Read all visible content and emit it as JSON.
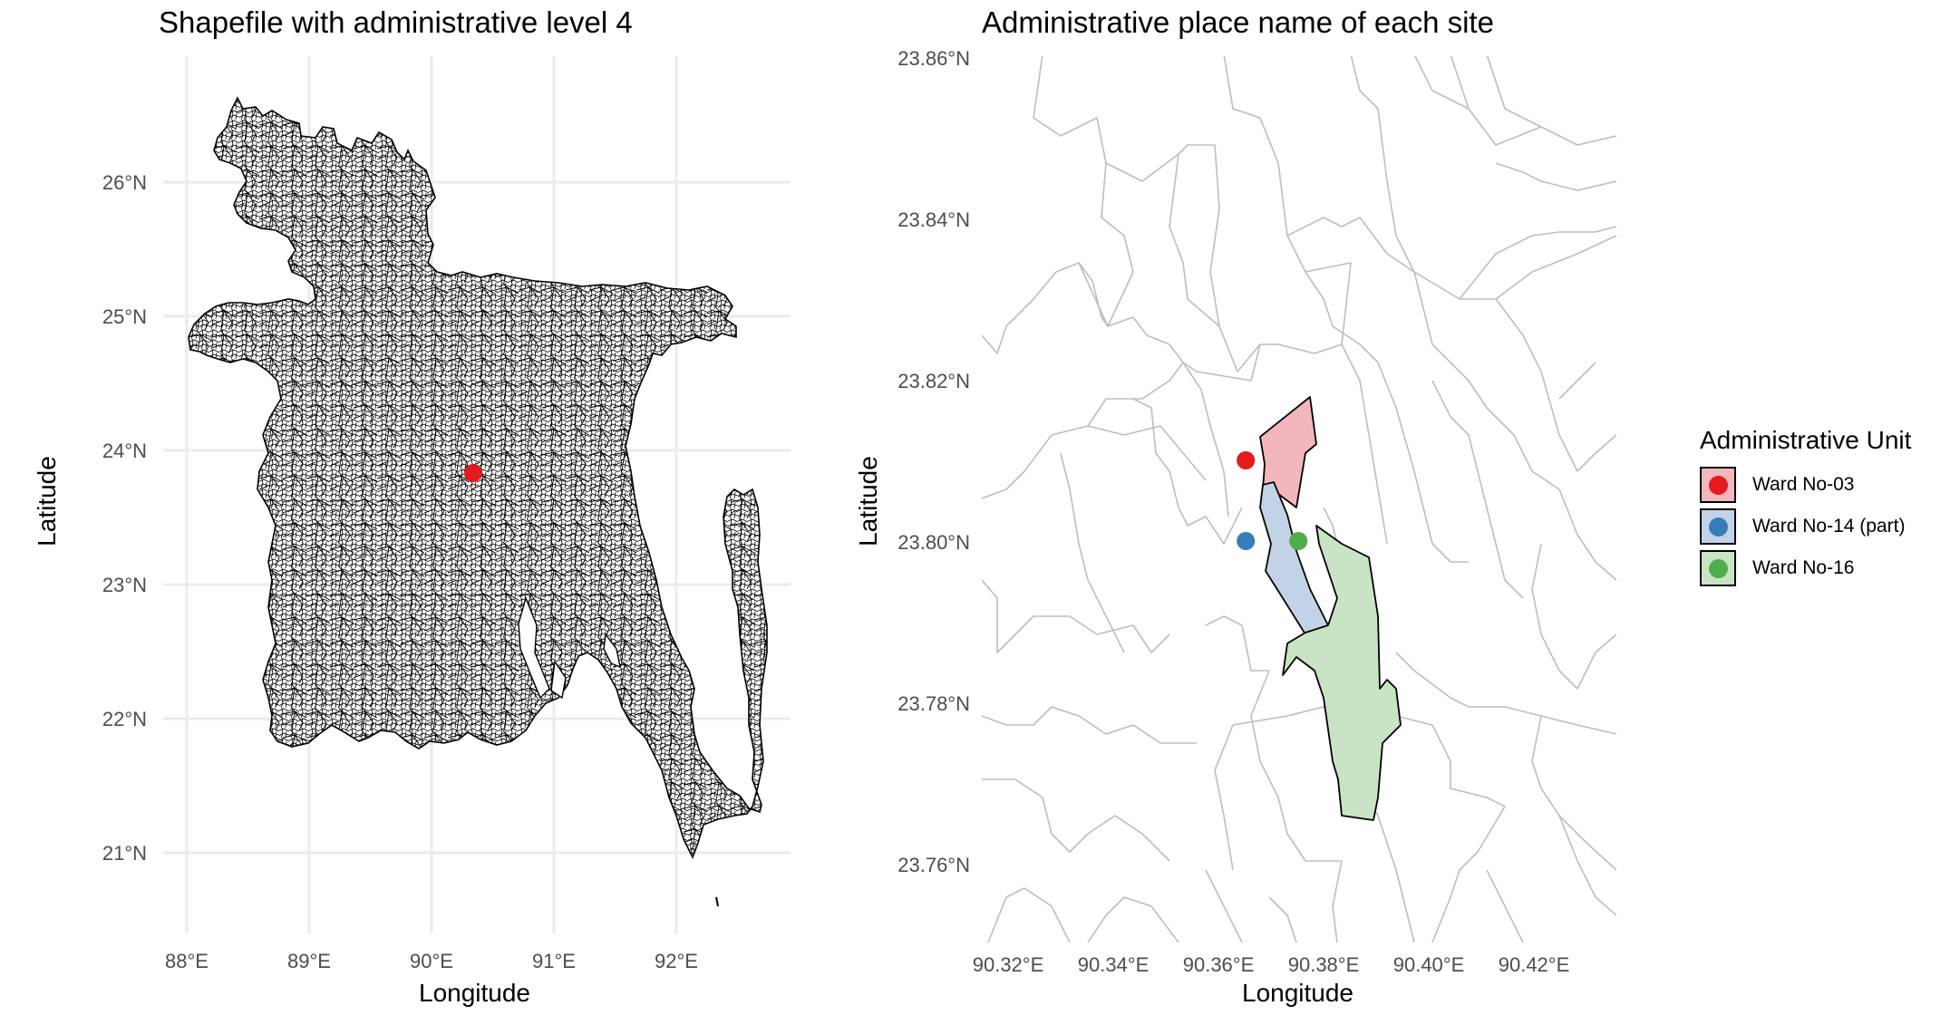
{
  "chart_data": [
    {
      "type": "map",
      "title": "Shapefile with administrative level 4",
      "xlabel": "Longitude",
      "ylabel": "Latitude",
      "x_ticks": [
        "88°E",
        "89°E",
        "90°E",
        "91°E",
        "92°E"
      ],
      "x_tick_values": [
        88,
        89,
        90,
        91,
        92
      ],
      "y_ticks": [
        "21°N",
        "22°N",
        "23°N",
        "24°N",
        "25°N",
        "26°N"
      ],
      "y_tick_values": [
        21,
        22,
        23,
        24,
        25,
        26
      ],
      "xlim": [
        87.9,
        92.9
      ],
      "ylim": [
        20.3,
        26.7
      ],
      "grid": true,
      "points": [
        {
          "lon": 90.37,
          "lat": 23.81,
          "color": "#e41a1c"
        }
      ]
    },
    {
      "type": "map",
      "title": "Administrative place name of each site",
      "xlabel": "Longitude",
      "ylabel": "Latitude",
      "x_ticks": [
        "90.32°E",
        "90.34°E",
        "90.36°E",
        "90.38°E",
        "90.40°E",
        "90.42°E"
      ],
      "x_tick_values": [
        90.32,
        90.34,
        90.36,
        90.38,
        90.4,
        90.42
      ],
      "y_ticks": [
        "23.76°N",
        "23.78°N",
        "23.80°N",
        "23.82°N",
        "23.84°N",
        "23.86°N"
      ],
      "y_tick_values": [
        23.76,
        23.78,
        23.8,
        23.82,
        23.84,
        23.86
      ],
      "xlim": [
        90.32,
        90.44
      ],
      "ylim": [
        23.75,
        23.86
      ],
      "grid": false,
      "legend_title": "Administrative Unit",
      "legend_position": "right",
      "sites": [
        {
          "name": "Ward No-03",
          "lon": 90.369,
          "lat": 23.81,
          "color": "#e41a1c",
          "fill": "#f4b6bd"
        },
        {
          "name": "Ward No-14 (part)",
          "lon": 90.369,
          "lat": 23.8,
          "color": "#377eb8",
          "fill": "#c2d3e8"
        },
        {
          "name": "Ward No-16",
          "lon": 90.379,
          "lat": 23.8,
          "color": "#4daf4a",
          "fill": "#c9e4c5"
        }
      ]
    }
  ]
}
